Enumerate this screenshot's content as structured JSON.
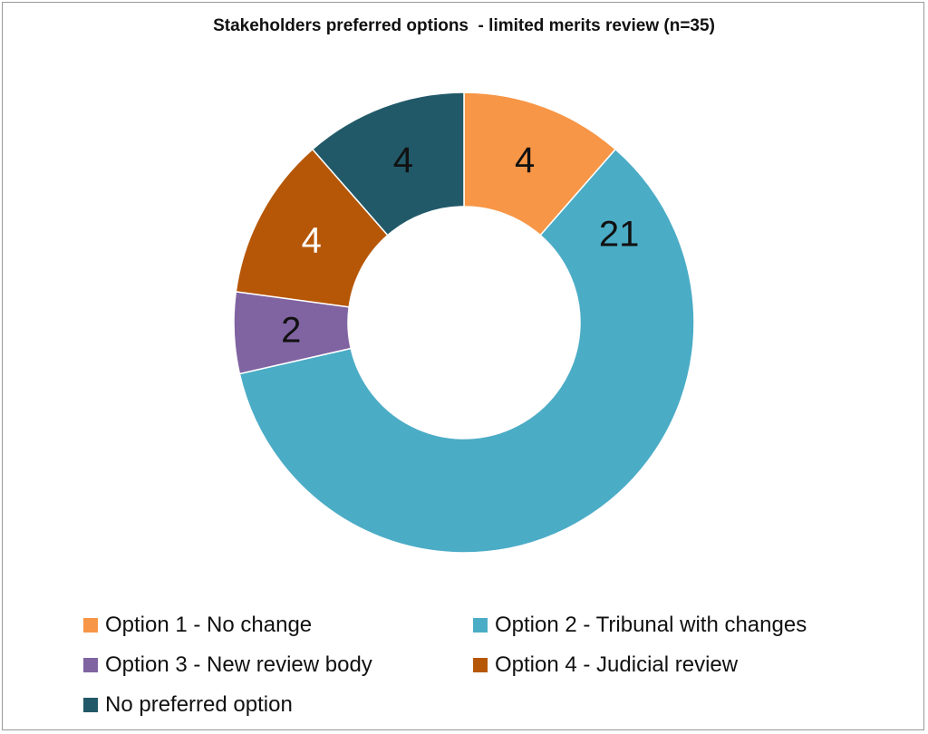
{
  "chart_data": {
    "type": "pie",
    "title": "Stakeholders preferred options  - limited merits review (n=35)",
    "categories": [
      "Option 1 - No change",
      "Option 2 - Tribunal with changes",
      "Option 3 - New review body",
      "Option 4 - Judicial review",
      "No preferred option"
    ],
    "values": [
      4,
      21,
      2,
      4,
      4
    ],
    "colors": [
      "#F79646",
      "#4BACC6",
      "#8064A2",
      "#B65708",
      "#215968"
    ],
    "data_labels": [
      "4",
      "21",
      "2",
      "4",
      "4"
    ],
    "label_colors": [
      "#111111",
      "#111111",
      "#111111",
      "#ffffff",
      "#111111"
    ],
    "donut": true,
    "legend_position": "bottom"
  }
}
